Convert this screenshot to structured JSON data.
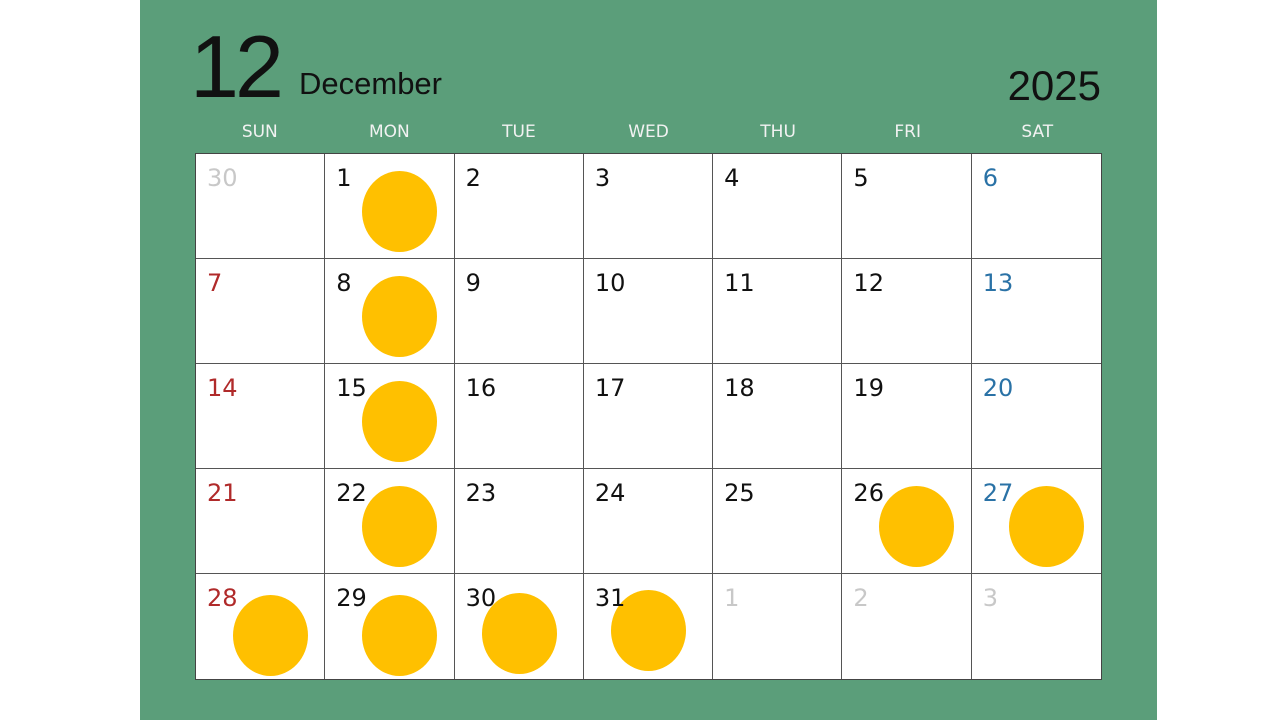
{
  "header": {
    "month_number": "12",
    "month_name": "December",
    "year": "2025"
  },
  "colors": {
    "background": "#5b9e7a",
    "marker": "#ffc000",
    "sunday": "#b02a2a",
    "saturday": "#2a72a6",
    "outside_month": "#c8c8c8"
  },
  "weekdays": [
    "SUN",
    "MON",
    "TUE",
    "WED",
    "THU",
    "FRI",
    "SAT"
  ],
  "weeks": [
    [
      {
        "day": "30",
        "type": "prev",
        "marked": false
      },
      {
        "day": "1",
        "type": "normal",
        "marked": true
      },
      {
        "day": "2",
        "type": "normal",
        "marked": false
      },
      {
        "day": "3",
        "type": "normal",
        "marked": false
      },
      {
        "day": "4",
        "type": "normal",
        "marked": false
      },
      {
        "day": "5",
        "type": "normal",
        "marked": false
      },
      {
        "day": "6",
        "type": "sat",
        "marked": false
      }
    ],
    [
      {
        "day": "7",
        "type": "sun",
        "marked": false
      },
      {
        "day": "8",
        "type": "normal",
        "marked": true
      },
      {
        "day": "9",
        "type": "normal",
        "marked": false
      },
      {
        "day": "10",
        "type": "normal",
        "marked": false
      },
      {
        "day": "11",
        "type": "normal",
        "marked": false
      },
      {
        "day": "12",
        "type": "normal",
        "marked": false
      },
      {
        "day": "13",
        "type": "sat",
        "marked": false
      }
    ],
    [
      {
        "day": "14",
        "type": "sun",
        "marked": false
      },
      {
        "day": "15",
        "type": "normal",
        "marked": true
      },
      {
        "day": "16",
        "type": "normal",
        "marked": false
      },
      {
        "day": "17",
        "type": "normal",
        "marked": false
      },
      {
        "day": "18",
        "type": "normal",
        "marked": false
      },
      {
        "day": "19",
        "type": "normal",
        "marked": false
      },
      {
        "day": "20",
        "type": "sat",
        "marked": false
      }
    ],
    [
      {
        "day": "21",
        "type": "sun",
        "marked": false
      },
      {
        "day": "22",
        "type": "normal",
        "marked": true
      },
      {
        "day": "23",
        "type": "normal",
        "marked": false
      },
      {
        "day": "24",
        "type": "normal",
        "marked": false
      },
      {
        "day": "25",
        "type": "normal",
        "marked": false
      },
      {
        "day": "26",
        "type": "normal",
        "marked": true
      },
      {
        "day": "27",
        "type": "sat",
        "marked": true
      }
    ],
    [
      {
        "day": "28",
        "type": "sun",
        "marked": true
      },
      {
        "day": "29",
        "type": "normal",
        "marked": true
      },
      {
        "day": "30",
        "type": "normal",
        "marked": true
      },
      {
        "day": "31",
        "type": "normal",
        "marked": true
      },
      {
        "day": "1",
        "type": "next",
        "marked": false
      },
      {
        "day": "2",
        "type": "next",
        "marked": false
      },
      {
        "day": "3",
        "type": "next",
        "marked": false
      }
    ]
  ]
}
